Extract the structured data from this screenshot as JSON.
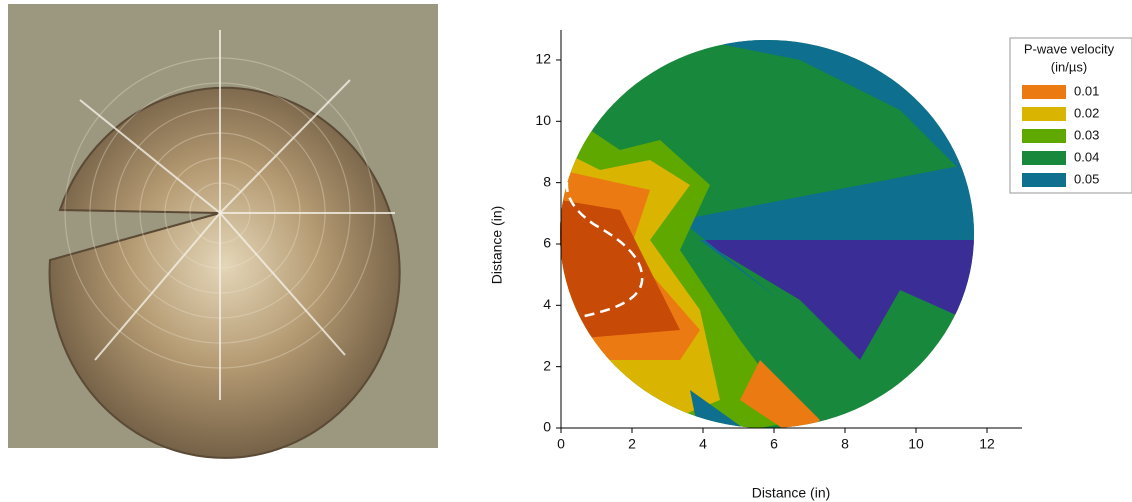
{
  "chart_data": {
    "type": "contour",
    "xlabel": "Distance (in)",
    "ylabel": "Distance (in)",
    "xlim": [
      0,
      13
    ],
    "ylim": [
      0,
      13
    ],
    "xticks": [
      0,
      2,
      4,
      6,
      8,
      10,
      12
    ],
    "yticks": [
      0,
      2,
      4,
      6,
      8,
      10,
      12
    ],
    "legend_title": [
      "P-wave velocity",
      "(in/µs)"
    ],
    "levels": [
      0.01,
      0.02,
      0.03,
      0.04,
      0.05
    ],
    "colors": [
      "#ec7a12",
      "#d9b400",
      "#5ea800",
      "#17883c",
      "#0e6f8e"
    ]
  }
}
